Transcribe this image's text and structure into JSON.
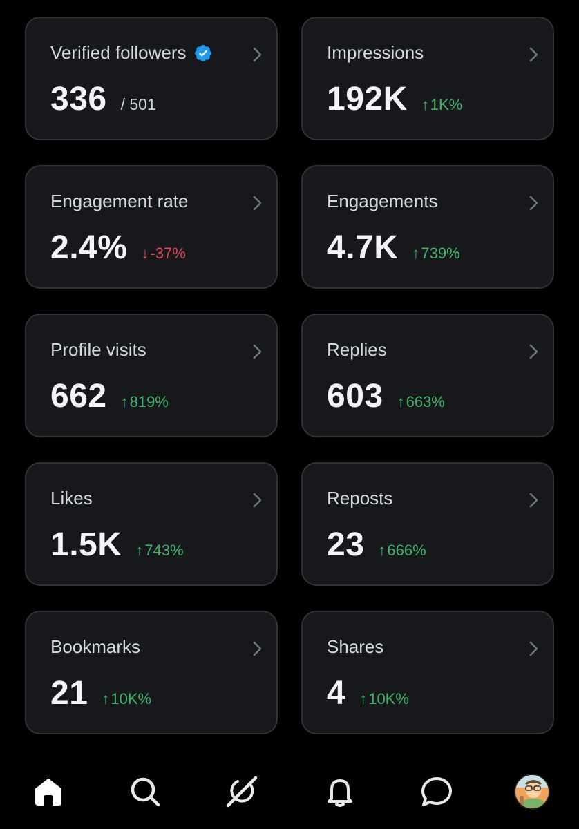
{
  "cards": [
    {
      "title": "Verified followers",
      "value": "336",
      "total": "/ 501",
      "trend": "",
      "direction": ""
    },
    {
      "title": "Impressions",
      "value": "192K",
      "total": "",
      "trend": "1K%",
      "direction": "up"
    },
    {
      "title": "Engagement rate",
      "value": "2.4%",
      "total": "",
      "trend": "-37%",
      "direction": "down"
    },
    {
      "title": "Engagements",
      "value": "4.7K",
      "total": "",
      "trend": "739%",
      "direction": "up"
    },
    {
      "title": "Profile visits",
      "value": "662",
      "total": "",
      "trend": "819%",
      "direction": "up"
    },
    {
      "title": "Replies",
      "value": "603",
      "total": "",
      "trend": "663%",
      "direction": "up"
    },
    {
      "title": "Likes",
      "value": "1.5K",
      "total": "",
      "trend": "743%",
      "direction": "up"
    },
    {
      "title": "Reposts",
      "value": "23",
      "total": "",
      "trend": "666%",
      "direction": "up"
    },
    {
      "title": "Bookmarks",
      "value": "21",
      "total": "",
      "trend": "10K%",
      "direction": "up"
    },
    {
      "title": "Shares",
      "value": "4",
      "total": "",
      "trend": "10K%",
      "direction": "up"
    }
  ],
  "arrows": {
    "up": "↑",
    "down": "↓"
  },
  "colors": {
    "background": "#000000",
    "card": "#16181c",
    "card_border": "#2f3336",
    "positive": "#3fb56b",
    "negative": "#e0475a",
    "verified": "#1d9bf0"
  },
  "icons": {
    "verified": "verified-badge-icon",
    "chevron": "chevron-right-icon"
  },
  "tabbar": {
    "tabs": [
      {
        "name": "home",
        "icon": "home-icon",
        "active": true
      },
      {
        "name": "search",
        "icon": "search-icon",
        "active": false
      },
      {
        "name": "grok",
        "icon": "grok-icon",
        "active": false
      },
      {
        "name": "notifications",
        "icon": "bell-icon",
        "active": false
      },
      {
        "name": "messages",
        "icon": "chat-bubble-icon",
        "active": false
      },
      {
        "name": "profile",
        "icon": "avatar",
        "active": false
      }
    ]
  }
}
